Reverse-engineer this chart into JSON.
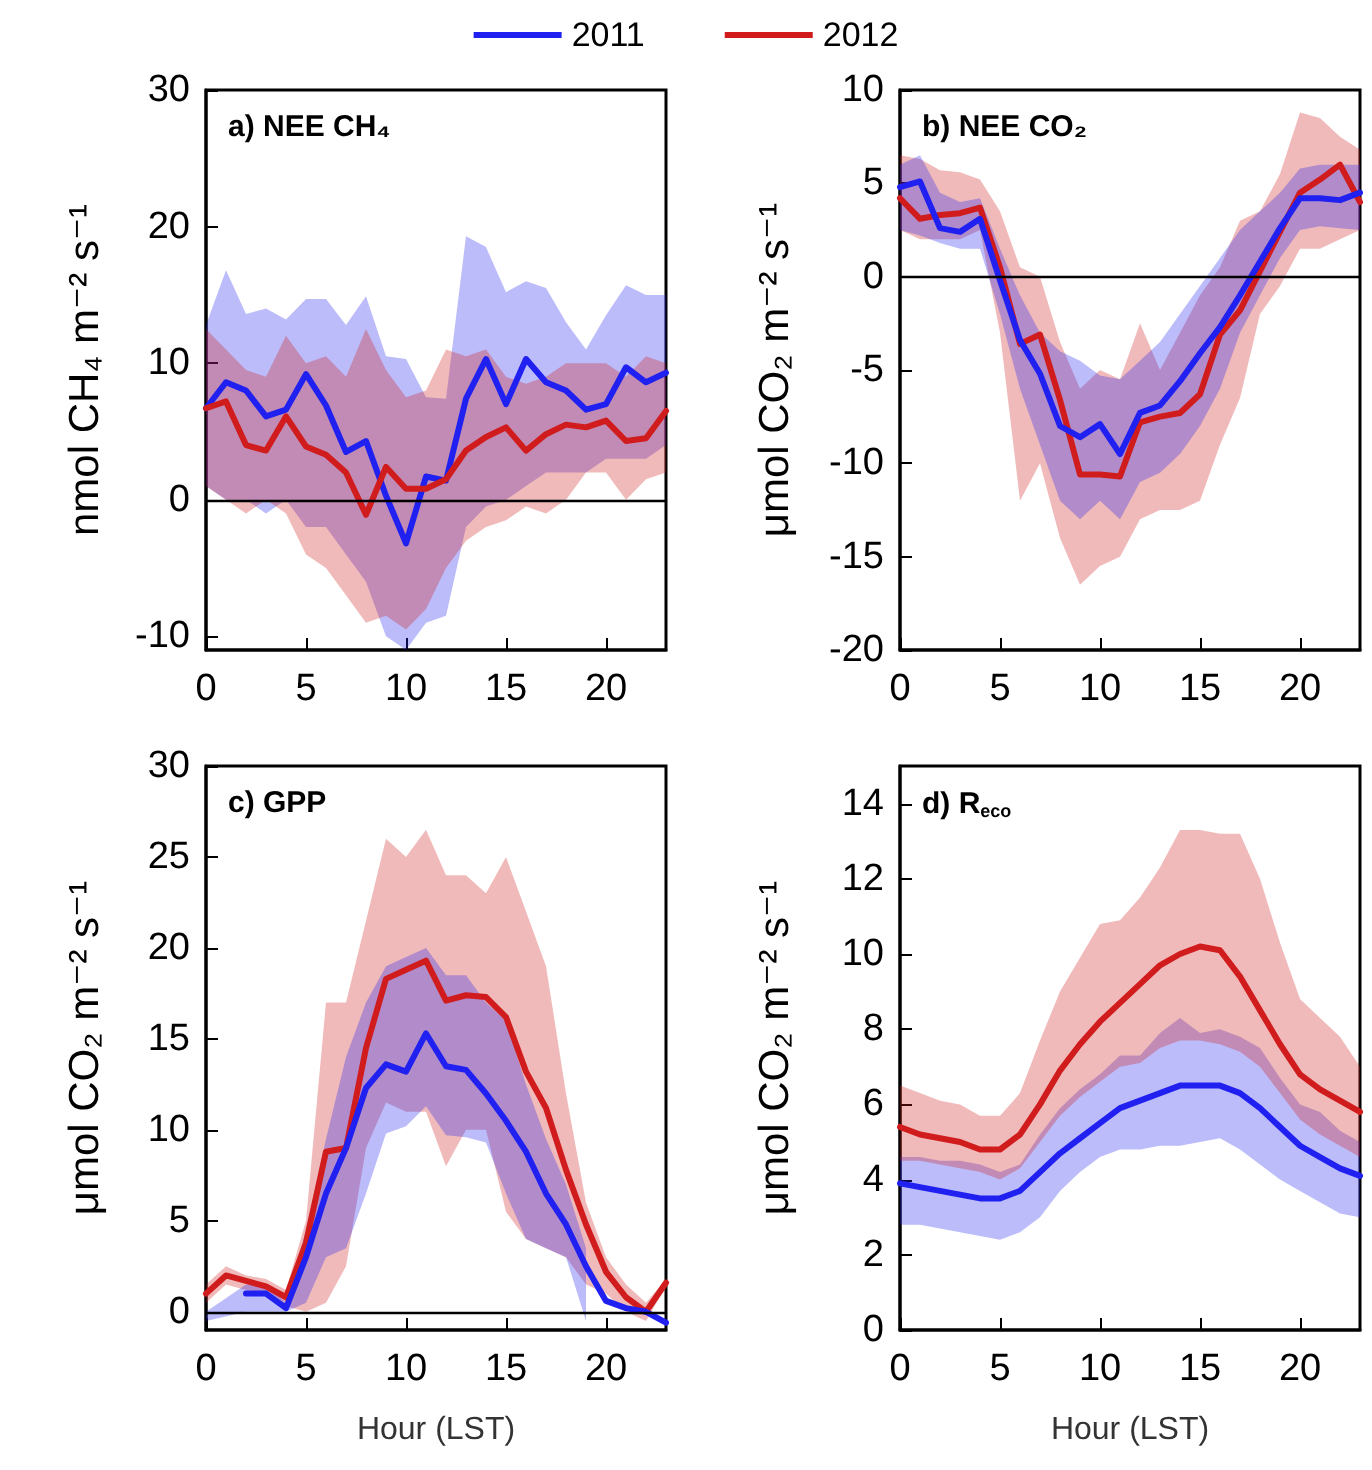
{
  "chart_data": [
    {
      "type": "line",
      "title": "a) NEE CH₄",
      "ylabel": "nmol CH₄ m⁻² s⁻¹",
      "x": [
        0,
        1,
        2,
        3,
        4,
        5,
        6,
        7,
        8,
        9,
        10,
        11,
        12,
        13,
        14,
        15,
        16,
        17,
        18,
        19,
        20,
        21,
        22,
        23
      ],
      "xlim": [
        0,
        23
      ],
      "xticks": [
        0,
        5,
        10,
        15,
        20
      ],
      "ylim": [
        -11,
        30
      ],
      "yticks": [
        -10,
        0,
        10,
        20,
        30
      ],
      "legend": "top",
      "grid": false,
      "ref_lines": [
        {
          "axis": "y",
          "value": 0,
          "color": "#000000"
        }
      ],
      "series": [
        {
          "name": "2011",
          "color": "#2020f0",
          "values": [
            6.7,
            8.6,
            8.0,
            6.1,
            6.6,
            9.2,
            6.9,
            3.5,
            4.3,
            0.3,
            -3.2,
            1.7,
            1.4,
            7.4,
            10.3,
            7.0,
            10.3,
            8.6,
            8.0,
            6.6,
            7.0,
            9.7,
            8.6,
            9.3
          ],
          "upper": [
            12.8,
            16.8,
            13.6,
            14.0,
            13.2,
            14.7,
            14.7,
            12.8,
            14.9,
            10.5,
            10.3,
            7.5,
            7.4,
            19.3,
            18.5,
            15.2,
            16.0,
            15.5,
            13.0,
            11.0,
            13.5,
            15.7,
            15.0,
            15.0
          ],
          "lower": [
            1,
            0,
            0,
            -1,
            0,
            -2,
            -2,
            -4,
            -6,
            -10,
            -11,
            -9,
            -8.5,
            -2,
            -0.5,
            0,
            1,
            2,
            2,
            2,
            3,
            3,
            3,
            4
          ]
        },
        {
          "name": "2012",
          "color": "#d01c1c",
          "values": [
            6.7,
            7.2,
            4.0,
            3.6,
            6.1,
            3.9,
            3.3,
            2.0,
            -1.1,
            2.4,
            0.8,
            0.8,
            1.5,
            3.6,
            4.6,
            5.3,
            3.6,
            4.8,
            5.5,
            5.3,
            5.8,
            4.3,
            4.5,
            6.5
          ],
          "upper": [
            12.5,
            11,
            9.5,
            9,
            12,
            10,
            10.5,
            9,
            12.5,
            9.5,
            7.5,
            8,
            11,
            10.5,
            11,
            9,
            8.5,
            9,
            10,
            10,
            10,
            9,
            10.5,
            10
          ],
          "lower": [
            1,
            0,
            -1,
            0,
            -1,
            -4,
            -5,
            -7,
            -9,
            -8.5,
            -9.5,
            -8,
            -5,
            -3,
            -2,
            -1.5,
            -0.5,
            -1,
            0,
            2,
            2,
            0,
            1.5,
            2
          ]
        }
      ]
    },
    {
      "type": "line",
      "title": "b) NEE CO₂",
      "ylabel": "μmol CO₂ m⁻² s⁻¹",
      "x": [
        0,
        1,
        2,
        3,
        4,
        5,
        6,
        7,
        8,
        9,
        10,
        11,
        12,
        13,
        14,
        15,
        16,
        17,
        18,
        19,
        20,
        21,
        22,
        23
      ],
      "xlim": [
        0,
        23
      ],
      "xticks": [
        0,
        5,
        10,
        15,
        20
      ],
      "ylim": [
        -20,
        10
      ],
      "yticks": [
        -20,
        -15,
        -10,
        -5,
        0,
        5,
        10
      ],
      "grid": false,
      "ref_lines": [
        {
          "axis": "y",
          "value": 0,
          "color": "#000000"
        }
      ],
      "series": [
        {
          "name": "2012",
          "color": "#d01c1c",
          "values": [
            4.2,
            3.1,
            3.3,
            3.4,
            3.7,
            0.5,
            -3.6,
            -3.1,
            -6.6,
            -10.6,
            -10.6,
            -10.7,
            -7.8,
            -7.5,
            -7.3,
            -6.3,
            -3.1,
            -1.8,
            0.3,
            2.4,
            4.5,
            5.2,
            6.0,
            4.0
          ],
          "upper": [
            6.5,
            6.3,
            5.7,
            5.6,
            5.2,
            3.5,
            0.5,
            0,
            -3.5,
            -6,
            -5,
            -5.5,
            -2.5,
            -5,
            -3,
            -1,
            0.5,
            3,
            3.5,
            5.5,
            8.8,
            8.5,
            7.5,
            6.8
          ],
          "lower": [
            2.5,
            2,
            2,
            2,
            2.5,
            -3,
            -12,
            -10,
            -14,
            -16.5,
            -15.5,
            -15,
            -13,
            -12.5,
            -12.5,
            -12,
            -9,
            -6.5,
            -2,
            -0.5,
            1.5,
            1.5,
            2,
            2.5
          ]
        },
        {
          "name": "2011",
          "color": "#2020f0",
          "values": [
            4.8,
            5.1,
            2.6,
            2.4,
            3.1,
            -0.2,
            -3.4,
            -5.2,
            -8.0,
            -8.6,
            -7.9,
            -9.5,
            -7.3,
            -6.9,
            -5.6,
            -4.1,
            -2.7,
            -1.0,
            0.8,
            2.6,
            4.2,
            4.2,
            4.1,
            4.5
          ],
          "upper": [
            6,
            6.5,
            4.5,
            4,
            4.2,
            1.5,
            -1,
            -3,
            -4,
            -4.5,
            -5.3,
            -5.5,
            -4.5,
            -3.5,
            -2,
            -0.5,
            1,
            2.5,
            3.5,
            4.5,
            5.8,
            6,
            6,
            6
          ],
          "lower": [
            2.5,
            2.2,
            1.8,
            1.5,
            1.5,
            -2,
            -6,
            -9,
            -12,
            -13,
            -12,
            -13,
            -11,
            -10.5,
            -9.5,
            -8,
            -6,
            -3,
            -1,
            1,
            2.5,
            2.7,
            2.6,
            2.5
          ]
        }
      ]
    },
    {
      "type": "line",
      "title": "c) GPP",
      "ylabel": "μmol CO₂ m⁻² s⁻¹",
      "xlabel": "Hour (LST)",
      "x": [
        0,
        1,
        2,
        3,
        4,
        5,
        6,
        7,
        8,
        9,
        10,
        11,
        12,
        13,
        14,
        15,
        16,
        17,
        18,
        19,
        20,
        21,
        22,
        23
      ],
      "xlim": [
        0,
        23
      ],
      "xticks": [
        0,
        5,
        10,
        15,
        20
      ],
      "ylim": [
        -1,
        30
      ],
      "yticks": [
        0,
        5,
        10,
        15,
        20,
        25,
        30
      ],
      "grid": false,
      "ref_lines": [
        {
          "axis": "y",
          "value": 0,
          "color": "#000000"
        }
      ],
      "series": [
        {
          "name": "2012",
          "color": "#d01c1c",
          "values": [
            1.0,
            2.0,
            1.7,
            1.4,
            0.8,
            3.8,
            8.8,
            9.0,
            14.5,
            18.3,
            18.8,
            19.3,
            17.1,
            17.4,
            17.3,
            16.2,
            13.2,
            11.2,
            7.8,
            4.8,
            2.2,
            0.8,
            0.0,
            1.6
          ],
          "upper": [
            1.5,
            2.5,
            2,
            1.8,
            1.2,
            5,
            17,
            17,
            21.5,
            26,
            25,
            26.5,
            24,
            24,
            23,
            25,
            22,
            19,
            12,
            6,
            3,
            1.5,
            0.5,
            1.8
          ],
          "lower": [
            0.5,
            1.5,
            1.2,
            1,
            0.3,
            0,
            0.5,
            2.5,
            9,
            11.5,
            11,
            11,
            8,
            10,
            10,
            5.5,
            4,
            3.5,
            3,
            1.5,
            1,
            0,
            -0.5,
            1.4
          ]
        },
        {
          "name": "2011",
          "color": "#2020f0",
          "values": [
            null,
            null,
            1.0,
            1.0,
            0.2,
            3.0,
            6.5,
            9.0,
            12.3,
            13.6,
            13.2,
            15.3,
            13.5,
            13.3,
            12.0,
            10.5,
            8.8,
            6.5,
            4.8,
            2.5,
            0.6,
            0.2,
            0.0,
            -0.6
          ],
          "upper": [
            0,
            null,
            1.5,
            1.5,
            0.5,
            4.5,
            9.5,
            14,
            17,
            19,
            19.5,
            20,
            18.5,
            18.5,
            17,
            16,
            12.5,
            9.5,
            7,
            3.5,
            null,
            null,
            null,
            null
          ],
          "lower": [
            -0.5,
            null,
            0,
            0,
            0,
            0.5,
            3,
            3.5,
            6.5,
            9.8,
            10.2,
            11.3,
            9.7,
            9.6,
            9.3,
            6.5,
            4,
            3.5,
            3,
            -0.5,
            null,
            null,
            null,
            null
          ]
        }
      ]
    },
    {
      "type": "line",
      "title": "d) R$_{eco}$",
      "ylabel": "μmol CO₂ m⁻² s⁻¹",
      "xlabel": "Hour (LST)",
      "x": [
        0,
        1,
        2,
        3,
        4,
        5,
        6,
        7,
        8,
        9,
        10,
        11,
        12,
        13,
        14,
        15,
        16,
        17,
        18,
        19,
        20,
        21,
        22,
        23
      ],
      "xlim": [
        0,
        23
      ],
      "xticks": [
        0,
        5,
        10,
        15,
        20
      ],
      "ylim": [
        0,
        15
      ],
      "yticks": [
        0,
        2,
        4,
        6,
        8,
        10,
        12,
        14
      ],
      "grid": false,
      "series": [
        {
          "name": "2011",
          "color": "#2020f0",
          "values": [
            3.9,
            3.8,
            3.7,
            3.6,
            3.5,
            3.5,
            3.7,
            4.2,
            4.7,
            5.1,
            5.5,
            5.9,
            6.1,
            6.3,
            6.5,
            6.5,
            6.5,
            6.3,
            5.9,
            5.4,
            4.9,
            4.6,
            4.3,
            4.1
          ],
          "upper": [
            4.6,
            4.6,
            4.5,
            4.5,
            4.4,
            4.2,
            4.4,
            5.2,
            5.9,
            6.4,
            6.8,
            7.3,
            7.3,
            7.9,
            8.3,
            7.9,
            8.0,
            7.8,
            7.5,
            6.7,
            6.0,
            5.8,
            5.3,
            5.0
          ],
          "lower": [
            2.8,
            2.8,
            2.7,
            2.6,
            2.5,
            2.4,
            2.6,
            3.0,
            3.7,
            4.2,
            4.6,
            4.8,
            4.8,
            4.9,
            4.9,
            5.0,
            5.1,
            4.8,
            4.4,
            4.0,
            3.7,
            3.4,
            3.1,
            3.0
          ]
        },
        {
          "name": "2012",
          "color": "#d01c1c",
          "values": [
            5.4,
            5.2,
            5.1,
            5.0,
            4.8,
            4.8,
            5.2,
            6.0,
            6.9,
            7.6,
            8.2,
            8.7,
            9.2,
            9.7,
            10.0,
            10.2,
            10.1,
            9.4,
            8.5,
            7.6,
            6.8,
            6.4,
            6.1,
            5.8
          ],
          "upper": [
            6.5,
            6.3,
            6.1,
            6.0,
            5.7,
            5.7,
            6.3,
            7.7,
            9.0,
            9.9,
            10.8,
            10.9,
            11.5,
            12.3,
            13.3,
            13.3,
            13.2,
            13.2,
            12.0,
            10.3,
            8.8,
            8.3,
            7.8,
            7.0
          ],
          "lower": [
            4.5,
            4.5,
            4.4,
            4.3,
            4.2,
            4.0,
            4.3,
            5.0,
            5.7,
            6.2,
            6.6,
            7.0,
            7.1,
            7.5,
            7.7,
            7.7,
            7.6,
            7.4,
            7.0,
            6.3,
            5.6,
            5.2,
            4.9,
            4.6
          ]
        }
      ]
    }
  ]
}
